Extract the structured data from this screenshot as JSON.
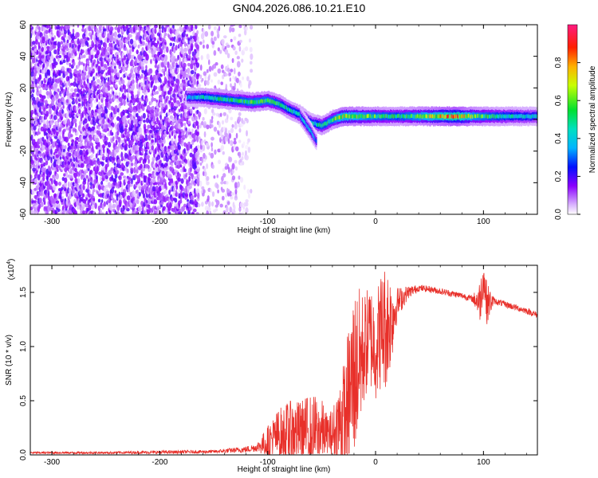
{
  "title": "GN04.2026.086.10.21.E10",
  "colors": {
    "snr_line": "#e8302a",
    "axis": "#000000",
    "background": "#ffffff"
  },
  "chart_data": [
    {
      "type": "heatmap",
      "xlabel": "Height of straight line (km)",
      "ylabel": "Frequency (Hz)",
      "xlim": [
        -320,
        150
      ],
      "ylim": [
        -60,
        60
      ],
      "x_ticks": [
        -300,
        -200,
        -100,
        0,
        100
      ],
      "y_ticks": [
        -60,
        -40,
        -20,
        0,
        20,
        40,
        60
      ],
      "colorbar": {
        "label": "Normalized spectral amplitude",
        "range": [
          0,
          1
        ],
        "ticks": [
          0.0,
          0.2,
          0.4,
          0.6,
          0.8
        ],
        "colormap": [
          "#ffffff",
          "#d9b3ff",
          "#7a00e6",
          "#0000ff",
          "#00c8ff",
          "#00e060",
          "#ffff00",
          "#ff8000",
          "#ff0000",
          "#ff1a80"
        ]
      },
      "regions": [
        {
          "x_range": [
            -320,
            -165
          ],
          "y_range": [
            -60,
            60
          ],
          "pattern": "scattered",
          "amplitude": 0.15
        },
        {
          "x_range": [
            -165,
            -125
          ],
          "y_range": [
            -60,
            60
          ],
          "pattern": "sparse",
          "amplitude": 0.08
        },
        {
          "x_range": [
            -125,
            -115
          ],
          "y_range": [
            -60,
            60
          ],
          "pattern": "faint",
          "amplitude": 0.04
        }
      ],
      "ridge": [
        {
          "x": -175,
          "f": 14,
          "a": 0.35
        },
        {
          "x": -160,
          "f": 14,
          "a": 0.45
        },
        {
          "x": -145,
          "f": 13,
          "a": 0.5
        },
        {
          "x": -130,
          "f": 12,
          "a": 0.5
        },
        {
          "x": -115,
          "f": 11,
          "a": 0.55
        },
        {
          "x": -100,
          "f": 12,
          "a": 0.55
        },
        {
          "x": -90,
          "f": 10,
          "a": 0.5
        },
        {
          "x": -80,
          "f": 6,
          "a": 0.45
        },
        {
          "x": -70,
          "f": 3,
          "a": 0.45
        },
        {
          "x": -60,
          "f": -2,
          "a": 0.4
        },
        {
          "x": -50,
          "f": -4,
          "a": 0.5
        },
        {
          "x": -40,
          "f": 0,
          "a": 0.55
        },
        {
          "x": -30,
          "f": 2,
          "a": 0.7
        },
        {
          "x": -20,
          "f": 2,
          "a": 0.65
        },
        {
          "x": -10,
          "f": 2,
          "a": 0.6
        },
        {
          "x": 0,
          "f": 2,
          "a": 0.55
        },
        {
          "x": 20,
          "f": 2,
          "a": 0.5
        },
        {
          "x": 40,
          "f": 2,
          "a": 0.6
        },
        {
          "x": 60,
          "f": 2,
          "a": 0.75
        },
        {
          "x": 75,
          "f": 2,
          "a": 0.85
        },
        {
          "x": 90,
          "f": 2,
          "a": 0.6
        },
        {
          "x": 110,
          "f": 2,
          "a": 0.5
        },
        {
          "x": 130,
          "f": 2,
          "a": 0.45
        },
        {
          "x": 150,
          "f": 2,
          "a": 0.4
        }
      ],
      "branch": [
        {
          "x": -70,
          "f": 2,
          "a": 0.4
        },
        {
          "x": -60,
          "f": -8,
          "a": 0.35
        },
        {
          "x": -55,
          "f": -14,
          "a": 0.3
        }
      ]
    },
    {
      "type": "line",
      "xlabel": "Height of straight line (km)",
      "ylabel": "SNR (10 * v/v)",
      "y_multiplier": "(x10",
      "y_exponent": "4",
      "y_multiplier_close": ")",
      "xlim": [
        -320,
        150
      ],
      "ylim": [
        0,
        17500
      ],
      "x_ticks": [
        -300,
        -200,
        -100,
        0,
        100
      ],
      "y_ticks": [
        0,
        5000,
        10000,
        15000
      ],
      "y_tick_labels": [
        "0.0",
        "0.5",
        "1.0",
        "1.5"
      ],
      "series": [
        {
          "x": [
            -320,
            -300,
            -250,
            -200,
            -150,
            -120,
            -110,
            -100,
            -90,
            -80,
            -70,
            -60,
            -50,
            -45,
            -40,
            -35,
            -30,
            -25,
            -20,
            -15,
            -10,
            -5,
            0,
            5,
            10,
            15,
            20,
            30,
            40,
            50,
            60,
            70,
            80,
            90,
            97,
            100,
            103,
            110,
            120,
            130,
            140,
            150
          ],
          "y": [
            200,
            200,
            200,
            250,
            300,
            500,
            700,
            1200,
            1800,
            2000,
            2200,
            2200,
            2200,
            2000,
            1800,
            2800,
            3000,
            5000,
            7500,
            8500,
            10000,
            11000,
            10000,
            11500,
            12000,
            12500,
            14000,
            15000,
            15400,
            15300,
            15100,
            14900,
            14700,
            14400,
            14200,
            16500,
            14000,
            14200,
            13900,
            13600,
            13300,
            12900
          ],
          "spread": [
            100,
            100,
            100,
            150,
            150,
            300,
            400,
            1500,
            2500,
            3000,
            2800,
            3500,
            3000,
            1800,
            2500,
            3500,
            5500,
            7000,
            8000,
            7000,
            5000,
            5000,
            5000,
            5500,
            6000,
            4000,
            1500,
            600,
            300,
            300,
            300,
            300,
            300,
            300,
            2000,
            2000,
            2000,
            300,
            300,
            300,
            300,
            300
          ]
        }
      ]
    }
  ]
}
